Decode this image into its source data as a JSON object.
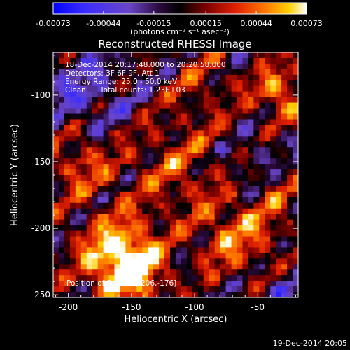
{
  "chart_data": {
    "type": "heatmap",
    "title": "Reconstructed RHESSI Image",
    "xlabel": "Heliocentric X (arcsec)",
    "ylabel": "Heliocentric Y (arcsec)",
    "xlim": [
      -212,
      -18
    ],
    "ylim": [
      -252,
      -68
    ],
    "x_ticks": [
      "-200",
      "-150",
      "-100",
      "-50"
    ],
    "x_tick_values": [
      -200,
      -150,
      -100,
      -50
    ],
    "y_ticks": [
      "-250",
      "-200",
      "-150",
      "-100"
    ],
    "y_tick_values": [
      -250,
      -200,
      -150,
      -100
    ],
    "colorbar": {
      "min": -0.00073,
      "max": 0.00073,
      "tick_labels": [
        "-0.00073",
        "-0.00044",
        "-0.00015",
        "0.00015",
        "0.00044",
        "0.00073"
      ],
      "tick_values": [
        -0.00073,
        -0.00044,
        -0.00015,
        0.00015,
        0.00044,
        0.00073
      ],
      "unit_label": "(photons cm⁻² s⁻¹ asec⁻²)",
      "colormap": [
        "#0000ff",
        "#5a3cc8",
        "#2a0a3c",
        "#000000",
        "#7a0000",
        "#e02000",
        "#ff7a00",
        "#ffd000",
        "#ffffff"
      ]
    },
    "annotations": [
      "18-Dec-2014 20:17:48.000 to 20:20:58.000",
      "Detectors: 3F 6F 9F, Att 1",
      "Energy Range: 25.0 - 50.0 keV",
      "Clean      Total counts: 1.23E+03"
    ],
    "peak_label": "Position of Peak = [-206,-176]",
    "peak_position": [
      -206,
      -176
    ],
    "footer_timestamp": "19-Dec-2014 20:05"
  }
}
